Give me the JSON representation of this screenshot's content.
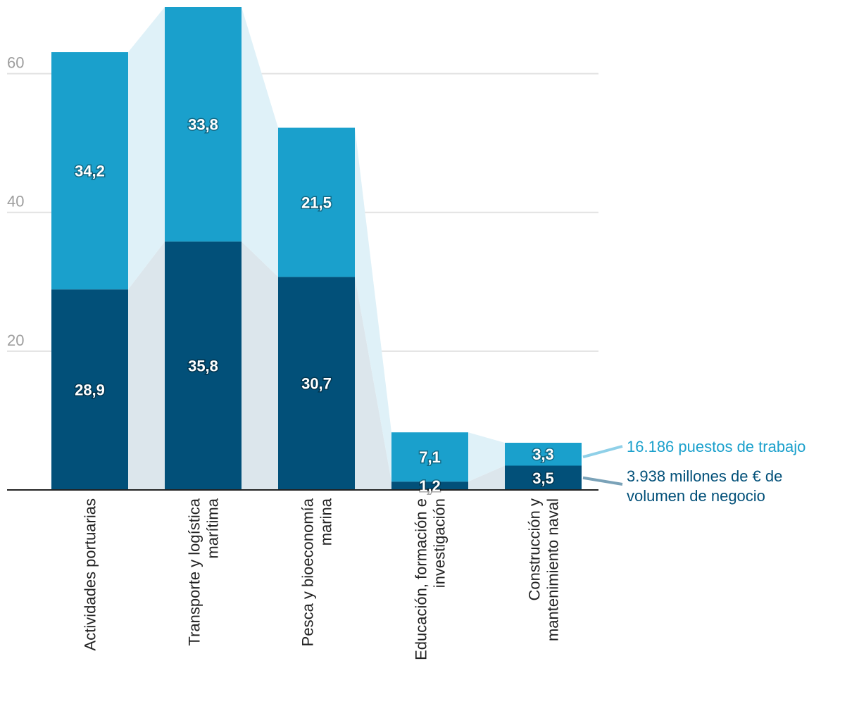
{
  "chart_data": {
    "type": "bar",
    "stacked": true,
    "categories": [
      [
        "Actividades portuarias"
      ],
      [
        "Transporte y logística",
        "marítima"
      ],
      [
        "Pesca y bioeconomía",
        "marina"
      ],
      [
        "Educación, formación e",
        "investigación"
      ],
      [
        "Construcción y",
        "mantenimiento naval"
      ]
    ],
    "series": [
      {
        "name": "3.938 millones de € de volumen de negocio",
        "legend_lines": [
          "3.938 millones de € de",
          "volumen de negocio"
        ],
        "color": "#025079",
        "values": [
          28.9,
          35.8,
          30.7,
          1.2,
          3.5
        ],
        "labels": [
          "28,9",
          "35,8",
          "30,7",
          "1,2",
          "3,5"
        ]
      },
      {
        "name": "16.186 puestos de trabajo",
        "legend_lines": [
          "16.186 puestos de trabajo"
        ],
        "color": "#1aa0cc",
        "values": [
          34.2,
          33.8,
          21.5,
          7.1,
          3.3
        ],
        "labels": [
          "34,2",
          "33,8",
          "21,5",
          "7,1",
          "3,3"
        ]
      }
    ],
    "yticks": [
      20,
      40,
      60
    ],
    "ylim": [
      0,
      69.6
    ],
    "grid": true,
    "legend": "right",
    "connector_colors": {
      "bottom": "#dce6ec",
      "top": "#dff1f8"
    }
  }
}
